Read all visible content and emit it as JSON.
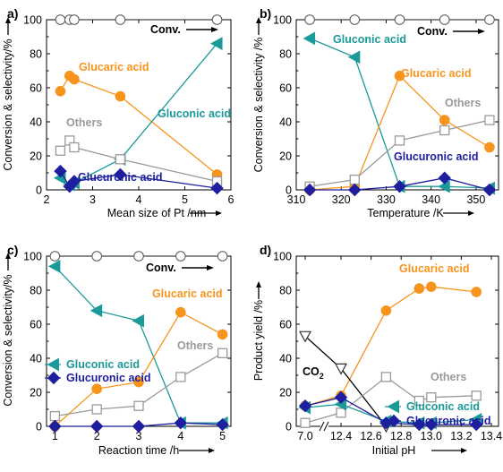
{
  "colors": {
    "conv": "#000000",
    "glucaric": "#F7941D",
    "gluconic": "#1A9A98",
    "others": "#9A9A9A",
    "glucuronic": "#1E1E9E",
    "co2": "#000000"
  },
  "chart_data": [
    {
      "panel": "a)",
      "type": "line",
      "xlabel": "Mean size of Pt /nm",
      "ylabel": "Conversion & selectivity/%",
      "xlim": [
        2,
        6
      ],
      "ylim": [
        0,
        100
      ],
      "xticks": [
        "2",
        "3",
        "4",
        "5",
        "6"
      ],
      "yticks": [
        "0",
        "20",
        "40",
        "60",
        "80",
        "100"
      ],
      "series": [
        {
          "name": "Conv.",
          "key": "conv",
          "marker": "circle",
          "x": [
            2.3,
            2.5,
            2.6,
            3.6,
            5.7
          ],
          "y": [
            100,
            100,
            100,
            100,
            100
          ]
        },
        {
          "name": "Glucaric acid",
          "key": "glucaric",
          "marker": "circle-filled",
          "x": [
            2.3,
            2.5,
            2.6,
            3.6,
            5.7
          ],
          "y": [
            58,
            67,
            65,
            55,
            9
          ]
        },
        {
          "name": "Gluconic acid",
          "key": "gluconic",
          "marker": "tri-left",
          "x": [
            2.3,
            2.5,
            2.6,
            3.6,
            5.7
          ],
          "y": [
            7,
            3,
            4,
            18,
            86
          ]
        },
        {
          "name": "Others",
          "key": "others",
          "marker": "square",
          "x": [
            2.3,
            2.5,
            2.6,
            3.6,
            5.7
          ],
          "y": [
            23,
            29,
            25,
            18,
            5
          ]
        },
        {
          "name": "Glucuronic acid",
          "key": "glucuronic",
          "marker": "diamond",
          "x": [
            2.3,
            2.5,
            2.6,
            3.6,
            5.7
          ],
          "y": [
            11,
            2,
            5,
            9,
            1
          ]
        }
      ],
      "labels": [
        {
          "text": "Conv.",
          "key": "conv"
        },
        {
          "text": "Glucaric acid",
          "key": "glucaric"
        },
        {
          "text": "Gluconic acid",
          "key": "gluconic"
        },
        {
          "text": "Others",
          "key": "others"
        },
        {
          "text": "Glucuronic acid",
          "key": "glucuronic"
        }
      ]
    },
    {
      "panel": "b)",
      "type": "line",
      "xlabel": "Temperature /K",
      "ylabel": "Conversion & selectivity /%",
      "xlim": [
        310,
        355
      ],
      "ylim": [
        0,
        100
      ],
      "xticks": [
        "310",
        "320",
        "330",
        "340",
        "350"
      ],
      "yticks": [
        "0",
        "20",
        "40",
        "60",
        "80",
        "100"
      ],
      "series": [
        {
          "name": "Conv.",
          "key": "conv",
          "marker": "circle",
          "x": [
            313,
            323,
            333,
            343,
            353
          ],
          "y": [
            100,
            100,
            100,
            100,
            100
          ]
        },
        {
          "name": "Gluconic acid",
          "key": "gluconic",
          "marker": "tri-left",
          "x": [
            313,
            323,
            333,
            343,
            353
          ],
          "y": [
            89,
            78,
            2,
            2,
            1
          ]
        },
        {
          "name": "Glucaric acid",
          "key": "glucaric",
          "marker": "circle-filled",
          "x": [
            313,
            323,
            333,
            343,
            353
          ],
          "y": [
            0,
            2,
            67,
            41,
            25
          ]
        },
        {
          "name": "Others",
          "key": "others",
          "marker": "square",
          "x": [
            313,
            323,
            333,
            343,
            353
          ],
          "y": [
            2,
            6,
            29,
            35,
            41
          ]
        },
        {
          "name": "Glucuronic acid",
          "key": "glucuronic",
          "marker": "diamond",
          "x": [
            313,
            323,
            333,
            343,
            353
          ],
          "y": [
            0,
            0,
            2,
            7,
            0
          ]
        }
      ],
      "labels": [
        {
          "text": "Conv.",
          "key": "conv"
        },
        {
          "text": "Gluconic acid",
          "key": "gluconic"
        },
        {
          "text": "Glucaric acid",
          "key": "glucaric"
        },
        {
          "text": "Others",
          "key": "others"
        },
        {
          "text": "Glucuronic acid",
          "key": "glucuronic"
        }
      ]
    },
    {
      "panel": "c)",
      "type": "line",
      "xlabel": "Reaction time /h",
      "ylabel": "Conversion & selectivity/%",
      "xlim": [
        0.8,
        5.2
      ],
      "ylim": [
        0,
        100
      ],
      "xticks": [
        "1",
        "2",
        "3",
        "4",
        "5"
      ],
      "yticks": [
        "0",
        "20",
        "40",
        "60",
        "80",
        "100"
      ],
      "series": [
        {
          "name": "Conv.",
          "key": "conv",
          "marker": "circle",
          "x": [
            1,
            2,
            3,
            4,
            5
          ],
          "y": [
            100,
            100,
            100,
            100,
            100
          ]
        },
        {
          "name": "Gluconic acid",
          "key": "gluconic",
          "marker": "tri-left",
          "x": [
            1,
            2,
            3,
            4,
            5
          ],
          "y": [
            94,
            68,
            62,
            2,
            2
          ]
        },
        {
          "name": "Glucaric acid",
          "key": "glucaric",
          "marker": "circle-filled",
          "x": [
            1,
            2,
            3,
            4,
            5
          ],
          "y": [
            0,
            22,
            26,
            67,
            54
          ]
        },
        {
          "name": "Others",
          "key": "others",
          "marker": "square",
          "x": [
            1,
            2,
            3,
            4,
            5
          ],
          "y": [
            6,
            10,
            12,
            29,
            43
          ]
        },
        {
          "name": "Glucuronic acid",
          "key": "glucuronic",
          "marker": "diamond",
          "x": [
            1,
            2,
            3,
            4,
            5
          ],
          "y": [
            0,
            0,
            0,
            2,
            1
          ]
        }
      ],
      "labels": [
        {
          "text": "Conv.",
          "key": "conv"
        },
        {
          "text": "Glucaric acid",
          "key": "glucaric"
        },
        {
          "text": "Others",
          "key": "others"
        }
      ],
      "legend": [
        {
          "text": "Gluconic acid",
          "key": "gluconic",
          "marker": "tri-left"
        },
        {
          "text": "Glucuronic acid",
          "key": "glucuronic",
          "marker": "diamond"
        }
      ]
    },
    {
      "panel": "d)",
      "type": "line",
      "xlabel": "Initial pH",
      "ylabel": "Product yield /%",
      "xlim": [
        6.9,
        13.45
      ],
      "ylim": [
        0,
        100
      ],
      "xticks": [
        "7.0",
        "12.4",
        "12.6",
        "12.8",
        "13.0",
        "13.2",
        "13.4"
      ],
      "yticks": [
        "0",
        "20",
        "40",
        "60",
        "80",
        "100"
      ],
      "axis_break": "//",
      "series": [
        {
          "name": "Glucaric acid",
          "key": "glucaric",
          "marker": "circle-filled",
          "x": [
            7.0,
            12.4,
            12.7,
            12.92,
            13.0,
            13.3
          ],
          "y": [
            12,
            18,
            68,
            81,
            82,
            79
          ]
        },
        {
          "name": "CO2",
          "key": "co2",
          "marker": "tri-down",
          "x": [
            7.0,
            12.4,
            12.7,
            12.92,
            13.0,
            13.3
          ],
          "y": [
            53,
            34,
            0,
            0,
            0,
            0
          ]
        },
        {
          "name": "Others",
          "key": "others",
          "marker": "square",
          "x": [
            7.0,
            12.4,
            12.7,
            12.92,
            13.0,
            13.3
          ],
          "y": [
            2,
            8,
            29,
            15,
            17,
            18
          ]
        },
        {
          "name": "Gluconic acid",
          "key": "gluconic",
          "marker": "tri-left",
          "x": [
            7.0,
            12.4,
            12.7,
            12.92,
            13.0,
            13.3
          ],
          "y": [
            11,
            13,
            3,
            2,
            2,
            4
          ]
        },
        {
          "name": "Glucuronic acid",
          "key": "glucuronic",
          "marker": "diamond",
          "x": [
            7.0,
            12.4,
            12.7,
            12.92,
            13.0,
            13.3
          ],
          "y": [
            12,
            17,
            2,
            1,
            1,
            1
          ]
        }
      ],
      "labels": [
        {
          "text": "Glucaric acid",
          "key": "glucaric"
        },
        {
          "text": "Others",
          "key": "others"
        },
        {
          "text": "CO",
          "sub": "2",
          "key": "co2"
        }
      ],
      "legend": [
        {
          "text": "Gluconic acid",
          "key": "gluconic",
          "marker": "tri-left"
        },
        {
          "text": "Glucuronic acid",
          "key": "glucuronic",
          "marker": "diamond"
        }
      ]
    }
  ]
}
